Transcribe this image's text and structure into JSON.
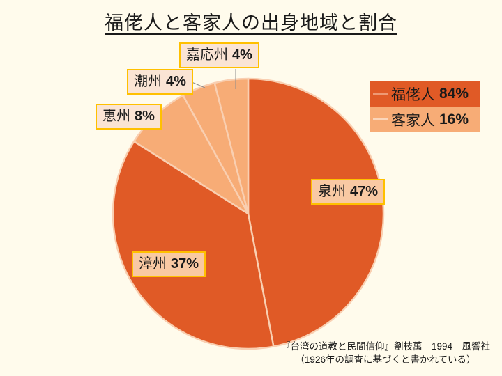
{
  "chart_data": {
    "type": "pie",
    "title": "福佬人と客家人の出身地域と割合",
    "start_angle_deg": 0,
    "direction": "clockwise",
    "unit": "%",
    "slices": [
      {
        "id": "quanzhou",
        "label": "泉州",
        "value": 47,
        "pct": "47%",
        "group": "福佬人",
        "color": "#E05A26"
      },
      {
        "id": "zhangzhou",
        "label": "漳州",
        "value": 37,
        "pct": "37%",
        "group": "福佬人",
        "color": "#E05A26"
      },
      {
        "id": "huizhou",
        "label": "恵州",
        "value": 8,
        "pct": "8%",
        "group": "客家人",
        "color": "#F7AC76"
      },
      {
        "id": "chaozhou",
        "label": "潮州",
        "value": 4,
        "pct": "4%",
        "group": "客家人",
        "color": "#F7AC76"
      },
      {
        "id": "jiayingzhou",
        "label": "嘉応州",
        "value": 4,
        "pct": "4%",
        "group": "客家人",
        "color": "#F7AC76"
      }
    ],
    "separator_color": "#F9CFB1",
    "legend": {
      "position": "right",
      "items": [
        {
          "label": "福佬人",
          "pct": "84%",
          "color": "#E05A26",
          "dash_color": "#EE9974"
        },
        {
          "label": "客家人",
          "pct": "16%",
          "color": "#F7AC76",
          "dash_color": "#FBD6BA"
        }
      ]
    },
    "source_line1": "『台湾の道教と民間信仰』劉枝萬　1994　風響社",
    "source_line2": "（1926年の調査に基づくと書かれている）"
  },
  "colors": {
    "background": "#FFFBEC",
    "label_border": "#FFC000",
    "label_bg_on_slice": "#F9C9A3",
    "label_bg_outside": "#FAE4D4",
    "leader_line": "#8C8C8C",
    "text": "#1A1A1A"
  }
}
